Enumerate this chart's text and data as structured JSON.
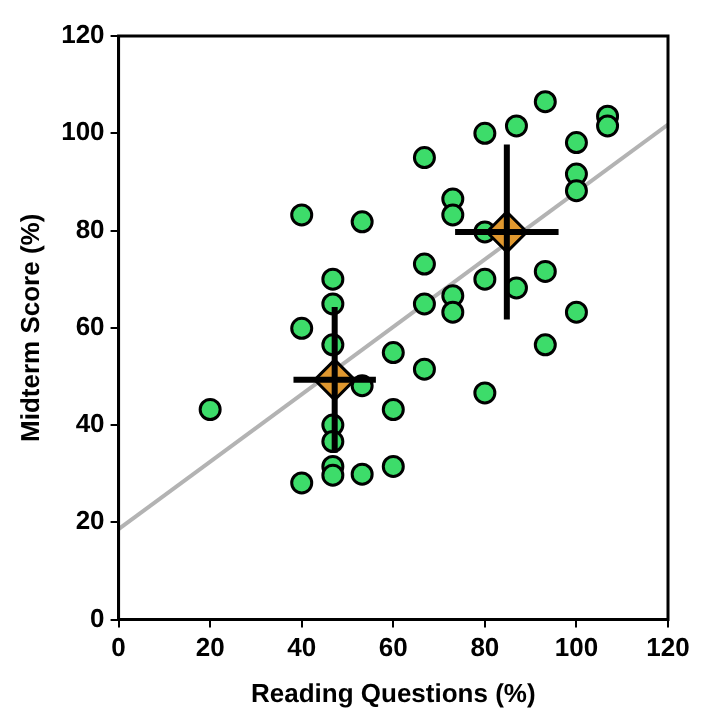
{
  "chart_data": {
    "type": "scatter",
    "xlabel": "Reading Questions (%)",
    "ylabel": "Midterm Score (%)",
    "xlim": [
      0,
      120
    ],
    "ylim": [
      0,
      120
    ],
    "xticks": [
      0,
      20,
      40,
      60,
      80,
      100,
      120
    ],
    "yticks": [
      0,
      20,
      40,
      60,
      80,
      100,
      120
    ],
    "grid": false,
    "legend": false,
    "series": [
      {
        "type": "line",
        "color": "#b3b3b3",
        "x": [
          0,
          120
        ],
        "values": [
          18.6,
          101.8
        ],
        "marker": "none",
        "line_style": "solid"
      },
      {
        "type": "scatter",
        "color": "#3ddc6a",
        "marker": "circle",
        "x": [
          20,
          40,
          40,
          40,
          46.8,
          46.8,
          46.8,
          46.8,
          46.8,
          46.8,
          46.8,
          53.2,
          53.2,
          53.2,
          60,
          60,
          60,
          66.8,
          66.8,
          66.8,
          66.8,
          73,
          73,
          73,
          73,
          80,
          80,
          80,
          80,
          86.9,
          86.9,
          93.2,
          93.2,
          93.2,
          100,
          100,
          100,
          100,
          106.8,
          106.8
        ],
        "values": [
          43.2,
          83.2,
          59.9,
          28.1,
          70,
          64.9,
          56.5,
          40,
          36.6,
          31.5,
          29.7,
          81.8,
          48.1,
          29.9,
          54.9,
          43.2,
          31.5,
          95,
          73.1,
          64.9,
          51.5,
          86.5,
          83.2,
          66.6,
          63.2,
          100,
          79.7,
          70,
          46.6,
          101.5,
          68.2,
          106.5,
          71.6,
          56.5,
          98.1,
          91.6,
          88.2,
          63.2,
          103.5,
          101.5
        ]
      },
      {
        "type": "scatter",
        "color": "#e0982f",
        "marker": "diamond",
        "x": [
          47.2,
          84.8
        ],
        "values": [
          49.3,
          79.7
        ],
        "errors": [
          15,
          18
        ],
        "xerrors": [
          9,
          11.3
        ]
      }
    ]
  }
}
